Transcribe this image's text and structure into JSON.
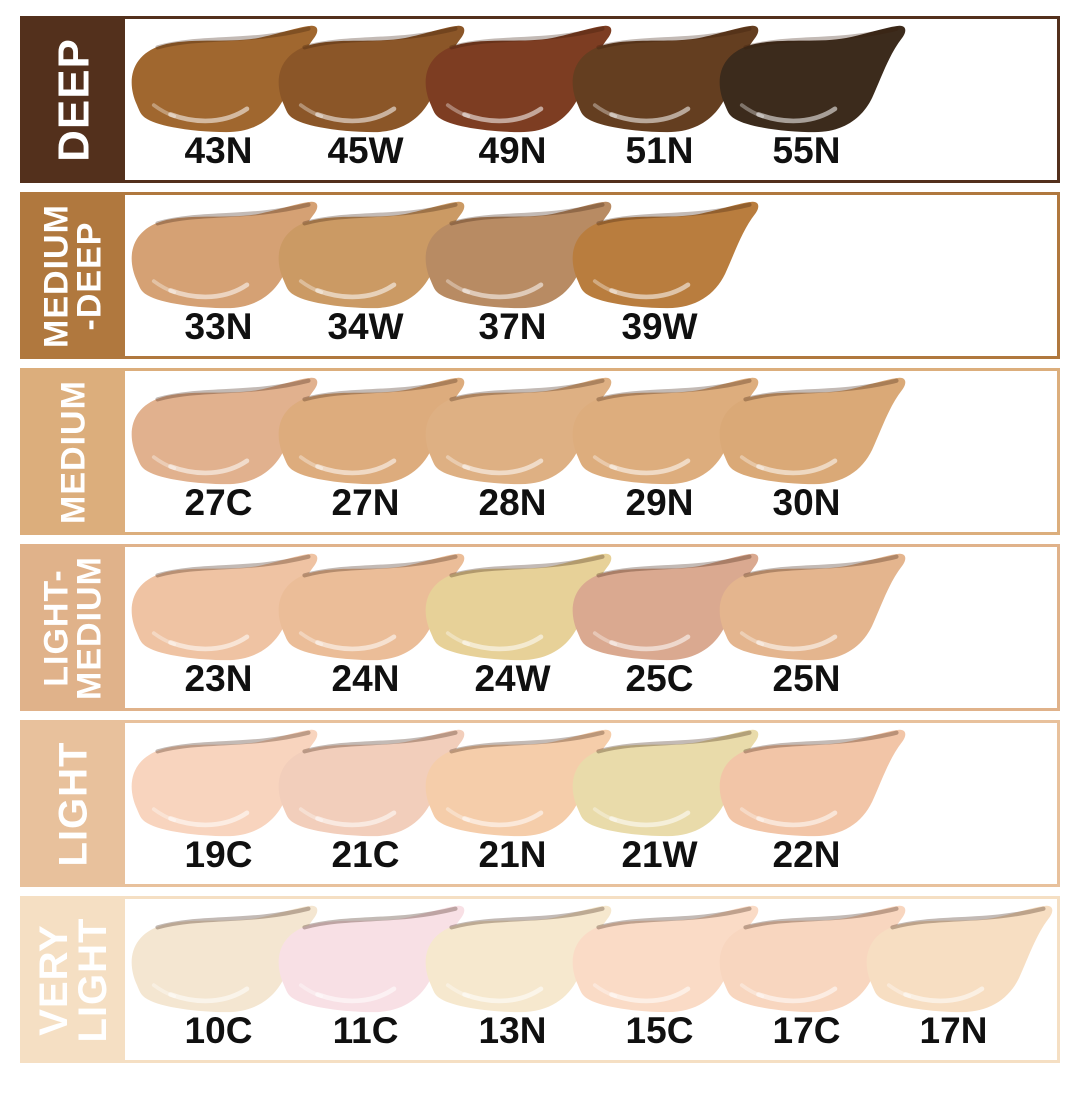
{
  "rows": [
    {
      "label": "DEEP",
      "label_lines": [
        "DEEP"
      ],
      "color": "#53301c",
      "shades": [
        {
          "code": "43N",
          "color": "#a0672f"
        },
        {
          "code": "45W",
          "color": "#8b5628"
        },
        {
          "code": "49N",
          "color": "#7d3d22"
        },
        {
          "code": "51N",
          "color": "#643e20"
        },
        {
          "code": "55N",
          "color": "#3c2b1c"
        }
      ]
    },
    {
      "label": "MEDIUM-DEEP",
      "label_lines": [
        "MEDIUM",
        "-DEEP"
      ],
      "color": "#b0783e",
      "shades": [
        {
          "code": "33N",
          "color": "#d5a174"
        },
        {
          "code": "34W",
          "color": "#cb9a64"
        },
        {
          "code": "37N",
          "color": "#b88b63"
        },
        {
          "code": "39W",
          "color": "#b97d3e"
        }
      ]
    },
    {
      "label": "MEDIUM",
      "label_lines": [
        "MEDIUM"
      ],
      "color": "#dcae7c",
      "shades": [
        {
          "code": "27C",
          "color": "#e1b18e"
        },
        {
          "code": "27N",
          "color": "#ddac7d"
        },
        {
          "code": "28N",
          "color": "#deb083"
        },
        {
          "code": "29N",
          "color": "#ddad7d"
        },
        {
          "code": "30N",
          "color": "#daa977"
        }
      ]
    },
    {
      "label": "LIGHT-MEDIUM",
      "label_lines": [
        "LIGHT-",
        "MEDIUM"
      ],
      "color": "#e0b28a",
      "shades": [
        {
          "code": "23N",
          "color": "#efc3a3"
        },
        {
          "code": "24N",
          "color": "#ebbd98"
        },
        {
          "code": "24W",
          "color": "#e7d198"
        },
        {
          "code": "25C",
          "color": "#daa990"
        },
        {
          "code": "25N",
          "color": "#e4b58e"
        }
      ]
    },
    {
      "label": "LIGHT",
      "label_lines": [
        "LIGHT"
      ],
      "color": "#e8c19c",
      "shades": [
        {
          "code": "19C",
          "color": "#f8d4be"
        },
        {
          "code": "21C",
          "color": "#f2cebb"
        },
        {
          "code": "21N",
          "color": "#f5cdaa"
        },
        {
          "code": "21W",
          "color": "#e9dbaa"
        },
        {
          "code": "22N",
          "color": "#f2c5a7"
        }
      ]
    },
    {
      "label": "VERY LIGHT",
      "label_lines": [
        "VERY",
        "LIGHT"
      ],
      "color": "#f5dfc3",
      "shades": [
        {
          "code": "10C",
          "color": "#f4e6d1"
        },
        {
          "code": "11C",
          "color": "#f8e0e5"
        },
        {
          "code": "13N",
          "color": "#f6e8ce"
        },
        {
          "code": "15C",
          "color": "#fadbc6"
        },
        {
          "code": "17C",
          "color": "#f8d6bf"
        },
        {
          "code": "17N",
          "color": "#f7dec2"
        }
      ]
    }
  ]
}
